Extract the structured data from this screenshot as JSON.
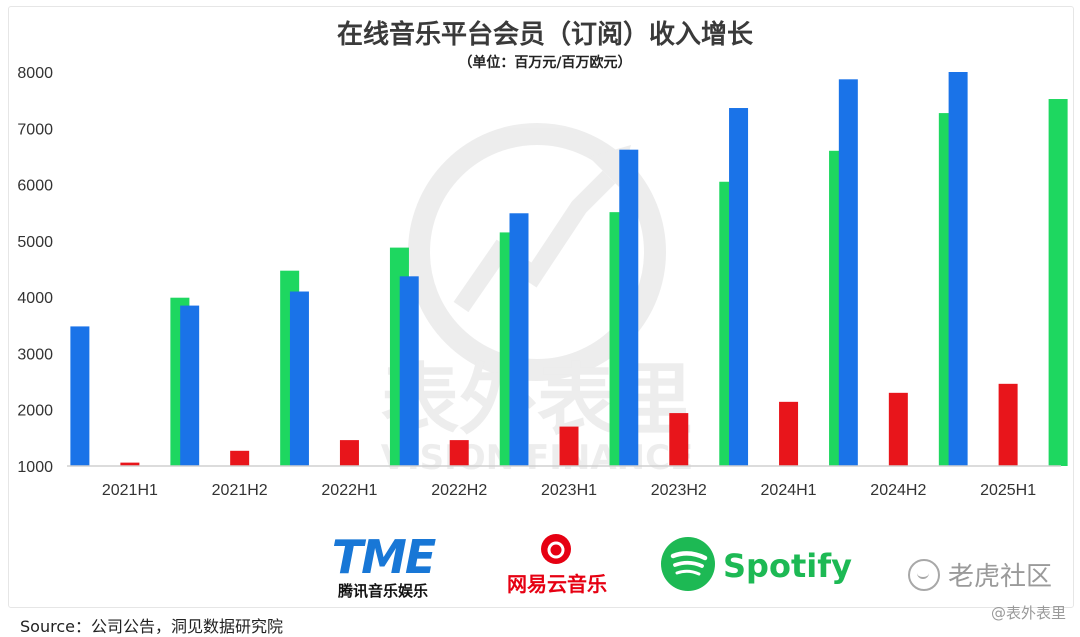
{
  "chart_data": {
    "type": "bar",
    "title": "在线音乐平台会员（订阅）收入增长",
    "subtitle": "（单位：百万元/百万欧元）",
    "categories": [
      "2021H1",
      "2021H2",
      "2022H1",
      "2022H2",
      "2023H1",
      "2023H2",
      "2024H1",
      "2024H2",
      "2025H1"
    ],
    "series": [
      {
        "name": "腾讯音乐娱乐",
        "color": "#1a73e8",
        "values": [
          3480,
          3850,
          4100,
          4370,
          5490,
          6620,
          7360,
          7870,
          8000
        ]
      },
      {
        "name": "网易云音乐",
        "color": "#e8151b",
        "values": [
          1060,
          1270,
          1460,
          1460,
          1700,
          1940,
          2140,
          2300,
          2460
        ]
      },
      {
        "name": "Spotify",
        "color": "#1ed760",
        "values": [
          3990,
          4470,
          4880,
          5150,
          5510,
          6050,
          6600,
          7270,
          7520
        ]
      }
    ],
    "yticks": [
      1000,
      2000,
      3000,
      4000,
      5000,
      6000,
      7000,
      8000
    ],
    "ylim": [
      1000,
      8300
    ],
    "grid": false,
    "legend": "bottom"
  },
  "logos": {
    "tme_mark": "TME",
    "tme_name": "腾讯音乐娱乐",
    "netease_name": "网易云音乐",
    "spotify_name": "Spotify"
  },
  "watermark": {
    "cn": "表外表里",
    "en": "VISION FINANCE"
  },
  "footer": {
    "source": "Source：公司公告，洞见数据研究院",
    "handle": "@表外表里",
    "community": "老虎社区"
  },
  "colors": {
    "tme_logo": "#1877d6",
    "netease_logo": "#e60012",
    "spotify_logo": "#1db954"
  }
}
